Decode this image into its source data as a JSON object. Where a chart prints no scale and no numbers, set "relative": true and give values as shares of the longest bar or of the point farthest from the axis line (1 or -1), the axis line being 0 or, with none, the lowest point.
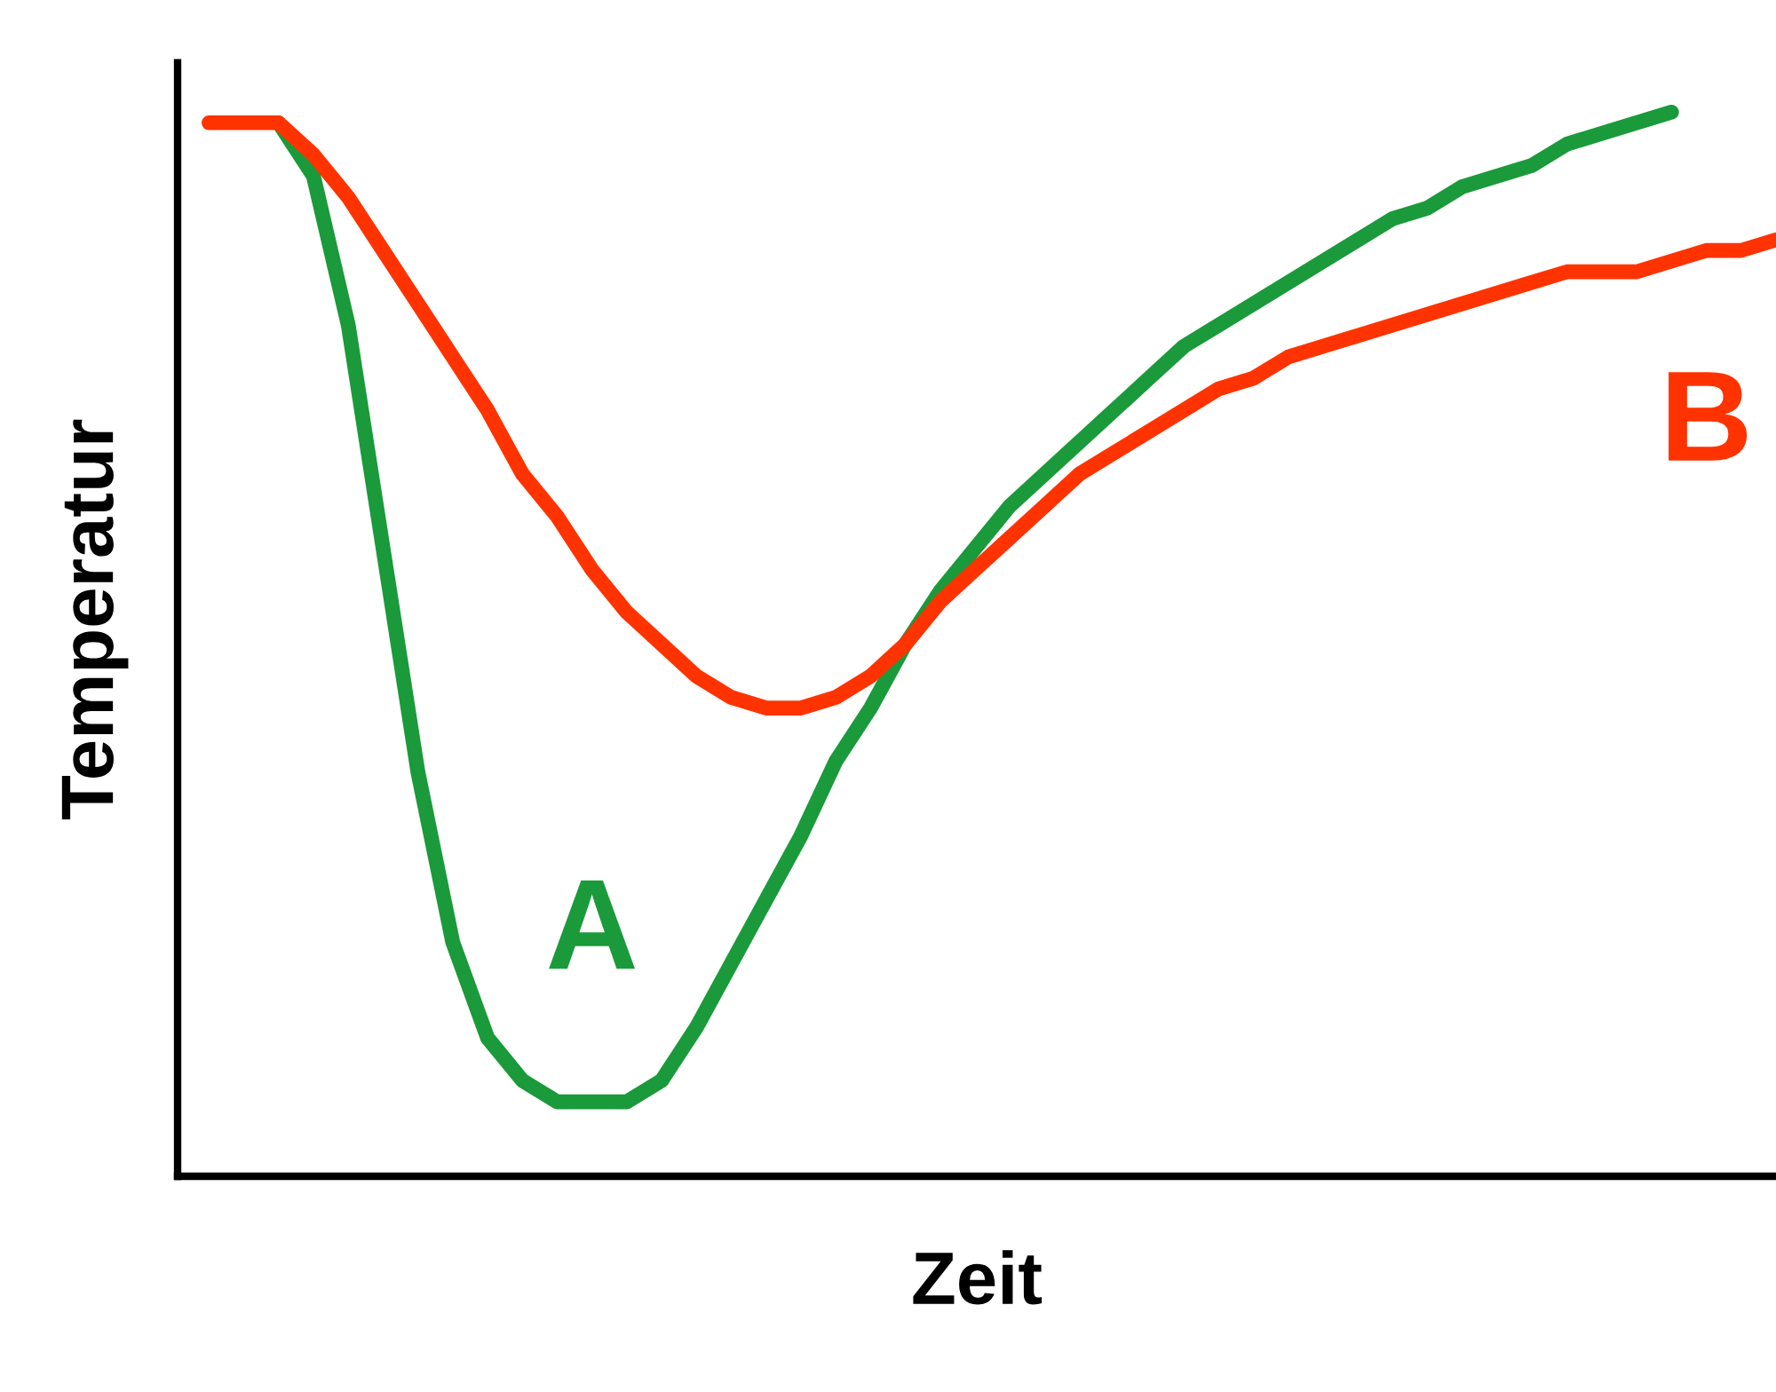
{
  "chart_data": {
    "type": "line",
    "relative": true,
    "xlabel": "Zeit",
    "ylabel": "Temperatur",
    "categories": [
      null,
      null,
      null,
      null,
      null,
      null,
      null,
      null,
      null,
      null,
      null,
      null,
      null,
      null,
      null,
      null,
      null,
      null,
      null,
      null,
      null,
      null,
      null,
      null,
      null,
      null,
      null,
      null,
      null,
      null,
      null,
      null,
      null,
      null,
      null,
      null,
      null,
      null,
      null,
      null,
      null,
      null,
      null,
      null,
      null,
      null
    ],
    "series": [
      {
        "name": "A",
        "color": "#1a9a3a",
        "values": [
          null,
          null,
          0.99,
          0.94,
          0.8,
          0.59,
          0.38,
          0.22,
          0.13,
          0.09,
          0.07,
          0.07,
          0.07,
          0.09,
          0.14,
          0.2,
          0.26,
          0.32,
          0.39,
          0.44,
          0.5,
          0.55,
          0.59,
          0.63,
          0.66,
          0.69,
          0.72,
          0.75,
          0.78,
          0.8,
          0.82,
          0.84,
          0.86,
          0.88,
          0.9,
          0.91,
          0.93,
          0.94,
          0.95,
          0.97,
          0.98,
          0.99,
          1,
          null,
          null,
          null
        ]
      },
      {
        "name": "B",
        "color": "#ff3300",
        "values": [
          0.99,
          0.99,
          0.99,
          0.96,
          0.92,
          0.87,
          0.82,
          0.77,
          0.72,
          0.66,
          0.62,
          0.57,
          0.53,
          0.5,
          0.47,
          0.45,
          0.44,
          0.44,
          0.45,
          0.47,
          0.5,
          0.54,
          0.57,
          0.6,
          0.63,
          0.66,
          0.68,
          0.7,
          0.72,
          0.74,
          0.75,
          0.77,
          0.78,
          0.79,
          0.8,
          0.81,
          0.82,
          0.83,
          0.84,
          0.85,
          0.85,
          0.85,
          0.86,
          0.87,
          0.87,
          0.88
        ]
      }
    ],
    "marker": "none",
    "line_style": "solid"
  }
}
